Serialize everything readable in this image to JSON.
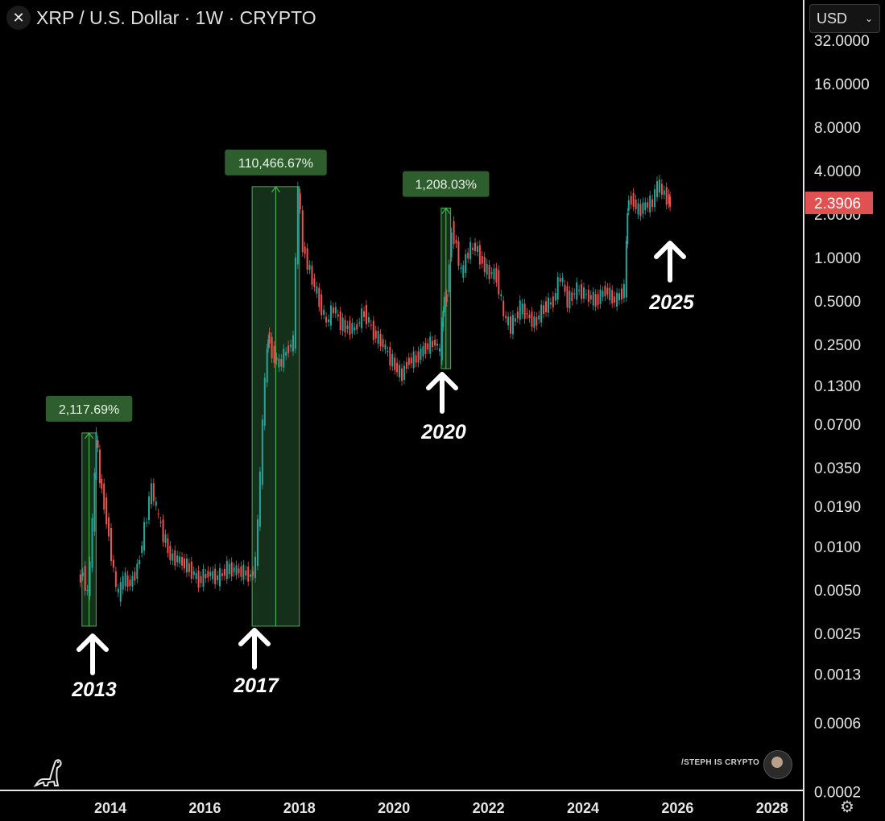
{
  "header": {
    "title": "XRP / U.S. Dollar · 1W · CRYPTO",
    "currency": "USD"
  },
  "watermark": "/STEPH IS CRYPTO",
  "colors": {
    "up": "#26a69a",
    "down": "#ef5350",
    "measure_fill": "#14301a",
    "measure_line": "#4caf50",
    "badge": "#2e5e2e",
    "price_tag": "#e05252"
  },
  "chart_data": {
    "type": "candlestick",
    "scale": "log",
    "timeframe": "1W",
    "y_ticks": [
      "32.0000",
      "16.0000",
      "8.0000",
      "4.0000",
      "2.0000",
      "1.0000",
      "0.5000",
      "0.2500",
      "0.1300",
      "0.0700",
      "0.0350",
      "0.0190",
      "0.0100",
      "0.0050",
      "0.0025",
      "0.0013",
      "0.0006",
      "0.0002"
    ],
    "x_ticks": [
      "2014",
      "2016",
      "2018",
      "2020",
      "2022",
      "2024",
      "2026",
      "2028"
    ],
    "last_price": "2.3906",
    "measurements": [
      {
        "label": "2,117.69%",
        "start": "2013.4",
        "end": "2013.7",
        "low": 0.0028,
        "high": 0.061
      },
      {
        "label": "110,466.67%",
        "start": "2017.0",
        "end": "2018.0",
        "low": 0.0028,
        "high": 3.1
      },
      {
        "label": "1,208.03%",
        "start": "2021.0",
        "end": "2021.2",
        "low": 0.17,
        "high": 2.2
      }
    ],
    "annotations": [
      "2013",
      "2017",
      "2020",
      "2025"
    ],
    "price_series": [
      [
        "2013.35",
        0.0058
      ],
      [
        "2013.45",
        0.0066
      ],
      [
        "2013.55",
        0.0045
      ],
      [
        "2013.65",
        0.014
      ],
      [
        "2013.72",
        0.061
      ],
      [
        "2013.8",
        0.03
      ],
      [
        "2013.9",
        0.02
      ],
      [
        "2014.0",
        0.012
      ],
      [
        "2014.1",
        0.0065
      ],
      [
        "2014.2",
        0.0045
      ],
      [
        "2014.3",
        0.006
      ],
      [
        "2014.45",
        0.0055
      ],
      [
        "2014.6",
        0.007
      ],
      [
        "2014.75",
        0.013
      ],
      [
        "2014.9",
        0.026
      ],
      [
        "2015.0",
        0.018
      ],
      [
        "2015.15",
        0.012
      ],
      [
        "2015.3",
        0.0085
      ],
      [
        "2015.5",
        0.008
      ],
      [
        "2015.7",
        0.007
      ],
      [
        "2015.9",
        0.0058
      ],
      [
        "2016.1",
        0.0065
      ],
      [
        "2016.3",
        0.006
      ],
      [
        "2016.5",
        0.007
      ],
      [
        "2016.7",
        0.0068
      ],
      [
        "2016.9",
        0.0065
      ],
      [
        "2017.0",
        0.0062
      ],
      [
        "2017.1",
        0.0075
      ],
      [
        "2017.2",
        0.03
      ],
      [
        "2017.3",
        0.15
      ],
      [
        "2017.35",
        0.3
      ],
      [
        "2017.45",
        0.22
      ],
      [
        "2017.6",
        0.18
      ],
      [
        "2017.8",
        0.24
      ],
      [
        "2017.9",
        0.26
      ],
      [
        "2018.0",
        3.1
      ],
      [
        "2018.1",
        1.2
      ],
      [
        "2018.25",
        0.8
      ],
      [
        "2018.45",
        0.5
      ],
      [
        "2018.6",
        0.35
      ],
      [
        "2018.75",
        0.45
      ],
      [
        "2018.9",
        0.35
      ],
      [
        "2019.0",
        0.33
      ],
      [
        "2019.2",
        0.32
      ],
      [
        "2019.4",
        0.42
      ],
      [
        "2019.6",
        0.3
      ],
      [
        "2019.8",
        0.25
      ],
      [
        "2019.95",
        0.2
      ],
      [
        "2020.2",
        0.15
      ],
      [
        "2020.3",
        0.19
      ],
      [
        "2020.5",
        0.2
      ],
      [
        "2020.7",
        0.24
      ],
      [
        "2020.9",
        0.26
      ],
      [
        "2021.0",
        0.22
      ],
      [
        "2021.05",
        0.45
      ],
      [
        "2021.15",
        0.55
      ],
      [
        "2021.25",
        1.6
      ],
      [
        "2021.35",
        1.2
      ],
      [
        "2021.45",
        0.75
      ],
      [
        "2021.6",
        1.1
      ],
      [
        "2021.75",
        1.2
      ],
      [
        "2021.85",
        1.0
      ],
      [
        "2022.0",
        0.8
      ],
      [
        "2022.2",
        0.75
      ],
      [
        "2022.35",
        0.4
      ],
      [
        "2022.5",
        0.33
      ],
      [
        "2022.7",
        0.45
      ],
      [
        "2022.85",
        0.4
      ],
      [
        "2023.0",
        0.35
      ],
      [
        "2023.2",
        0.45
      ],
      [
        "2023.4",
        0.5
      ],
      [
        "2023.55",
        0.75
      ],
      [
        "2023.7",
        0.5
      ],
      [
        "2023.9",
        0.6
      ],
      [
        "2024.1",
        0.55
      ],
      [
        "2024.3",
        0.5
      ],
      [
        "2024.5",
        0.6
      ],
      [
        "2024.7",
        0.5
      ],
      [
        "2024.9",
        0.6
      ],
      [
        "2024.95",
        2.2
      ],
      [
        "2025.05",
        2.6
      ],
      [
        "2025.2",
        2.1
      ],
      [
        "2025.35",
        2.3
      ],
      [
        "2025.5",
        2.4
      ],
      [
        "2025.6",
        3.2
      ],
      [
        "2025.7",
        2.9
      ],
      [
        "2025.8",
        2.6
      ],
      [
        "2025.85",
        2.3906
      ]
    ]
  }
}
